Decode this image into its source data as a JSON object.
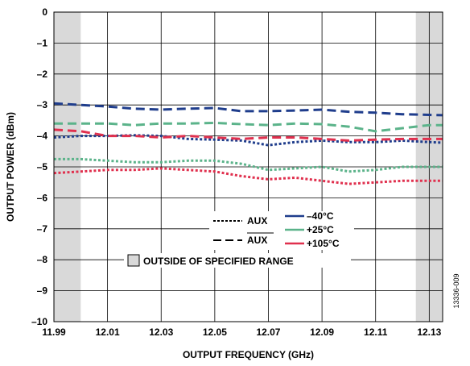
{
  "chart_data": {
    "type": "line",
    "xlabel": "OUTPUT FREQUENCY (GHz)",
    "ylabel": "OUTPUT POWER (dBm)",
    "xlim": [
      11.99,
      12.135
    ],
    "ylim": [
      -10,
      0
    ],
    "x_ticks": [
      11.99,
      12.01,
      12.03,
      12.05,
      12.07,
      12.09,
      12.11,
      12.13
    ],
    "x_tick_labels": [
      "11.99",
      "12.01",
      "12.03",
      "12.05",
      "12.07",
      "12.09",
      "12.11",
      "12.13"
    ],
    "y_ticks": [
      0,
      -1,
      -2,
      -3,
      -4,
      -5,
      -6,
      -7,
      -8,
      -9,
      -10
    ],
    "y_tick_labels": [
      "0",
      "–1",
      "–2",
      "–3",
      "–4",
      "–5",
      "–6",
      "–7",
      "–8",
      "–9",
      "–10"
    ],
    "grid": true,
    "shaded_regions": [
      {
        "x_start": 11.99,
        "x_end": 12.0
      },
      {
        "x_start": 12.125,
        "x_end": 12.135
      }
    ],
    "series": [
      {
        "name": "AUX",
        "line_label": "AUX",
        "temperature": "–40°C",
        "style": "dotted",
        "color": "#1f3d8c",
        "x": [
          11.99,
          12.0,
          12.01,
          12.02,
          12.03,
          12.04,
          12.05,
          12.06,
          12.07,
          12.08,
          12.09,
          12.1,
          12.11,
          12.12,
          12.13,
          12.135
        ],
        "y": [
          -4.05,
          -4.0,
          -4.0,
          -3.98,
          -4.0,
          -4.1,
          -4.12,
          -4.15,
          -4.3,
          -4.2,
          -4.15,
          -4.2,
          -4.2,
          -4.15,
          -4.2,
          -4.22
        ]
      },
      {
        "name": "AUX",
        "line_label": "AUX (complement)",
        "temperature": "–40°C",
        "style": "dashed",
        "color": "#1f3d8c",
        "x": [
          11.99,
          12.0,
          12.01,
          12.02,
          12.03,
          12.04,
          12.05,
          12.06,
          12.07,
          12.08,
          12.09,
          12.1,
          12.11,
          12.12,
          12.13,
          12.135
        ],
        "y": [
          -2.95,
          -3.0,
          -3.05,
          -3.12,
          -3.15,
          -3.12,
          -3.1,
          -3.2,
          -3.2,
          -3.18,
          -3.15,
          -3.22,
          -3.25,
          -3.3,
          -3.32,
          -3.33
        ]
      },
      {
        "name": "AUX",
        "line_label": "AUX",
        "temperature": "+25°C",
        "style": "dotted",
        "color": "#5bb38a",
        "x": [
          11.99,
          12.0,
          12.01,
          12.02,
          12.03,
          12.04,
          12.05,
          12.06,
          12.07,
          12.08,
          12.09,
          12.1,
          12.11,
          12.12,
          12.13,
          12.135
        ],
        "y": [
          -4.75,
          -4.75,
          -4.8,
          -4.85,
          -4.85,
          -4.8,
          -4.8,
          -4.9,
          -5.1,
          -5.05,
          -5.0,
          -5.15,
          -5.1,
          -5.0,
          -5.0,
          -5.0
        ]
      },
      {
        "name": "AUX",
        "line_label": "AUX (complement)",
        "temperature": "+25°C",
        "style": "dashed",
        "color": "#5bb38a",
        "x": [
          11.99,
          12.0,
          12.01,
          12.02,
          12.03,
          12.04,
          12.05,
          12.06,
          12.07,
          12.08,
          12.09,
          12.1,
          12.11,
          12.12,
          12.13,
          12.135
        ],
        "y": [
          -3.6,
          -3.6,
          -3.6,
          -3.65,
          -3.6,
          -3.6,
          -3.58,
          -3.62,
          -3.65,
          -3.6,
          -3.62,
          -3.7,
          -3.85,
          -3.75,
          -3.65,
          -3.65
        ]
      },
      {
        "name": "AUX",
        "line_label": "AUX",
        "temperature": "+105°C",
        "style": "dotted",
        "color": "#e0304e",
        "x": [
          11.99,
          12.0,
          12.01,
          12.02,
          12.03,
          12.04,
          12.05,
          12.06,
          12.07,
          12.08,
          12.09,
          12.1,
          12.11,
          12.12,
          12.13,
          12.135
        ],
        "y": [
          -5.2,
          -5.15,
          -5.1,
          -5.1,
          -5.05,
          -5.1,
          -5.15,
          -5.3,
          -5.4,
          -5.35,
          -5.45,
          -5.55,
          -5.5,
          -5.45,
          -5.45,
          -5.45
        ]
      },
      {
        "name": "AUX",
        "line_label": "AUX (complement)",
        "temperature": "+105°C",
        "style": "dashed",
        "color": "#e0304e",
        "x": [
          11.99,
          12.0,
          12.01,
          12.02,
          12.03,
          12.04,
          12.05,
          12.06,
          12.07,
          12.08,
          12.09,
          12.1,
          12.11,
          12.12,
          12.13,
          12.135
        ],
        "y": [
          -3.8,
          -3.85,
          -4.0,
          -4.0,
          -4.05,
          -4.0,
          -4.05,
          -4.1,
          -4.05,
          -4.05,
          -4.1,
          -4.15,
          -4.12,
          -4.1,
          -4.1,
          -4.1
        ]
      }
    ],
    "legend": {
      "placement": "center-bottom",
      "styles": [
        {
          "label": "AUX",
          "overline": false,
          "style": "dotted"
        },
        {
          "label": "AUX",
          "overline": true,
          "style": "dashed"
        }
      ],
      "temperatures": [
        {
          "label": "–40°C",
          "color": "#1f3d8c"
        },
        {
          "label": "+25°C",
          "color": "#5bb38a"
        },
        {
          "label": "+105°C",
          "color": "#e0304e"
        }
      ],
      "shaded_label": "OUTSIDE OF SPECIFIED RANGE",
      "shaded_color": "#d9d9d9"
    },
    "figure_id": "13336-009"
  }
}
